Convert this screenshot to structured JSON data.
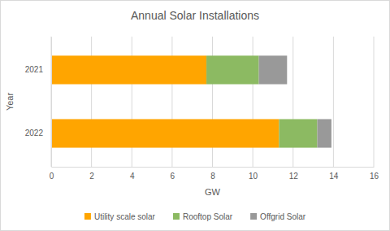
{
  "chart_data": {
    "type": "bar",
    "orientation": "horizontal",
    "stacked": true,
    "title": "Annual Solar Installations",
    "xlabel": "GW",
    "ylabel": "Year",
    "categories": [
      "2021",
      "2022"
    ],
    "series": [
      {
        "name": "Utility scale solar",
        "color": "#ffa500",
        "values": [
          7.7,
          11.3
        ]
      },
      {
        "name": "Rooftop Solar",
        "color": "#8cba62",
        "values": [
          2.6,
          1.9
        ]
      },
      {
        "name": "Offgrid Solar",
        "color": "#999999",
        "values": [
          1.4,
          0.7
        ]
      }
    ],
    "xlim": [
      0,
      16
    ],
    "xticks": [
      0,
      2,
      4,
      6,
      8,
      10,
      12,
      14,
      16
    ],
    "grid": true,
    "legend": "bottom"
  }
}
